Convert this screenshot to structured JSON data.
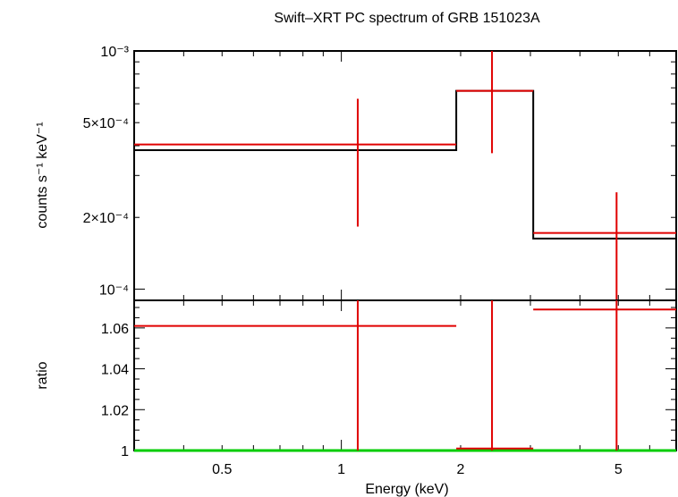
{
  "chart_data": [
    {
      "panel": "spectrum",
      "type": "line",
      "title": "Swift–XRT PC spectrum of GRB 151023A",
      "xlabel": "Energy (keV)",
      "ylabel": "counts s⁻¹ keV⁻¹",
      "x_scale": "log",
      "y_scale": "log",
      "xlim": [
        0.3,
        7.0
      ],
      "ylim": [
        8.97e-05,
        0.001
      ],
      "yticks": [
        {
          "value": 0.001,
          "label": "10⁻³"
        },
        {
          "value": 0.0005,
          "label": "5×10⁻⁴"
        },
        {
          "value": 0.0002,
          "label": "2×10⁻⁴"
        },
        {
          "value": 0.0001,
          "label": "10⁻⁴"
        }
      ],
      "model": {
        "color": "#000000",
        "steps": [
          {
            "x0": 0.3,
            "x1": 1.95,
            "y": 0.000383
          },
          {
            "x0": 1.95,
            "x1": 3.05,
            "y": 0.00068
          },
          {
            "x0": 3.05,
            "x1": 7.0,
            "y": 0.000163
          }
        ]
      },
      "data": {
        "color": "#e00000",
        "points": [
          {
            "x0": 0.3,
            "x1": 1.95,
            "xc": 1.1,
            "y": 0.000405,
            "ylo": 0.000183,
            "yhi": 0.00063
          },
          {
            "x0": 1.95,
            "x1": 3.05,
            "xc": 2.4,
            "y": 0.00068,
            "ylo": 0.000372,
            "yhi": 0.001
          },
          {
            "x0": 3.05,
            "x1": 7.0,
            "xc": 4.95,
            "y": 0.000172,
            "ylo": 8.97e-05,
            "yhi": 0.000255
          }
        ]
      }
    },
    {
      "panel": "ratio",
      "type": "scatter",
      "xlabel": "Energy (keV)",
      "ylabel": "ratio",
      "x_scale": "log",
      "xlim": [
        0.3,
        7.0
      ],
      "ylim": [
        1.0,
        1.0735
      ],
      "xticks": [
        {
          "value": 0.5,
          "label": "0.5"
        },
        {
          "value": 1,
          "label": "1"
        },
        {
          "value": 2,
          "label": "2"
        },
        {
          "value": 5,
          "label": "5"
        }
      ],
      "yticks": [
        {
          "value": 1.0,
          "label": "1"
        },
        {
          "value": 1.02,
          "label": "1.02"
        },
        {
          "value": 1.04,
          "label": "1.04"
        },
        {
          "value": 1.06,
          "label": "1.06"
        }
      ],
      "reference_line": {
        "y": 1.0,
        "color": "#00cc00"
      },
      "data": {
        "color": "#e00000",
        "points": [
          {
            "x0": 0.3,
            "x1": 1.95,
            "xc": 1.1,
            "y": 1.061,
            "ylo": 1.0,
            "yhi": 1.0735
          },
          {
            "x0": 1.95,
            "x1": 3.05,
            "xc": 2.4,
            "y": 1.001,
            "ylo": 1.0,
            "yhi": 1.0735
          },
          {
            "x0": 3.05,
            "x1": 7.0,
            "xc": 4.95,
            "y": 1.069,
            "ylo": 1.0,
            "yhi": 1.0735
          }
        ]
      }
    }
  ]
}
